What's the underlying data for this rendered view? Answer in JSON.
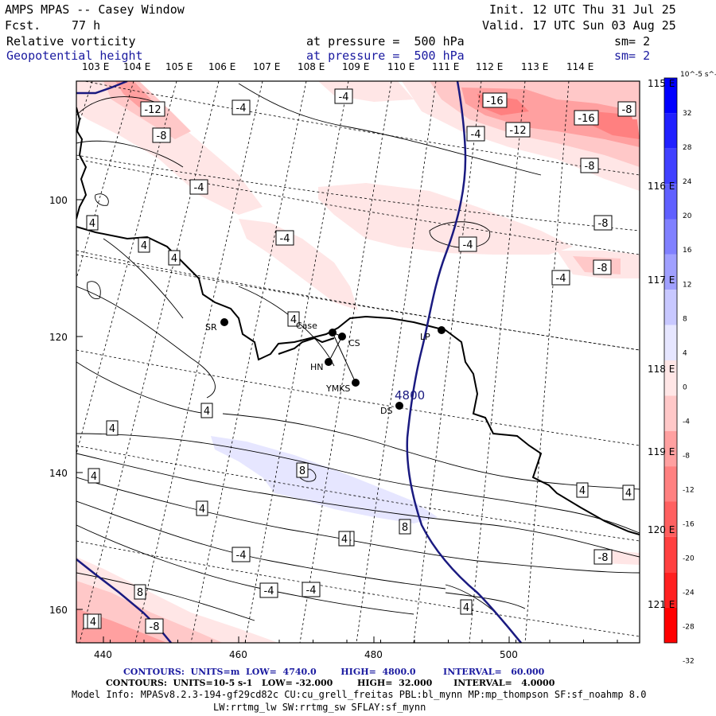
{
  "header": {
    "title": "AMPS MPAS -- Casey Window",
    "forecast_label": "Fcst.",
    "forecast_value": "77 h",
    "init": "Init. 12 UTC Thu 31 Jul 25",
    "valid": "Valid. 17 UTC Sun 03 Aug 25",
    "field1_name": "Relative vorticity",
    "field1_level": "at pressure =  500 hPa",
    "field1_sm": "sm= 2",
    "field2_name": "Geopotential height",
    "field2_level": "at pressure =  500 hPa",
    "field2_sm": "sm= 2"
  },
  "top_lon_labels": [
    "103 E",
    "104 E",
    "105 E",
    "106 E",
    "107 E",
    "108 E",
    "109 E",
    "110 E",
    "111 E",
    "112 E",
    "113 E",
    "114 E"
  ],
  "right_lon_labels": [
    "115 E",
    "116 E",
    "117 E",
    "118 E",
    "119 E",
    "120 E",
    "121 E"
  ],
  "x_ticks": [
    "440",
    "460",
    "480",
    "500"
  ],
  "y_ticks": [
    "100",
    "120",
    "140",
    "160"
  ],
  "colorbar": {
    "unit": "10^-5 s^-1",
    "labels": [
      "32",
      "28",
      "24",
      "20",
      "16",
      "12",
      "8",
      "4",
      "0",
      "-4",
      "-8",
      "-12",
      "-16",
      "-20",
      "-24",
      "-28",
      "-32"
    ],
    "colors": {
      "pos": [
        "#0000ff",
        "#2020ff",
        "#4040ff",
        "#6060ff",
        "#8080ff",
        "#a0a0ff",
        "#c8c8ff",
        "#e6e6ff"
      ],
      "neg": [
        "#ffe6e6",
        "#ffc8c8",
        "#ffa0a0",
        "#ff8080",
        "#ff6060",
        "#ff4040",
        "#ff2020",
        "#ff0000"
      ]
    }
  },
  "stations": [
    "SR",
    "Case",
    "CS",
    "HN",
    "YMKS",
    "DS",
    "LP"
  ],
  "contour_labels": [
    "-12",
    "-4",
    "-4",
    "-16",
    "-8",
    "-8",
    "-4",
    "-12",
    "-16",
    "-8",
    "-4",
    "-4",
    "-4",
    "-8",
    "-4",
    "4",
    "4",
    "4",
    "4",
    "4",
    "4",
    "4",
    "8",
    "8",
    "4",
    "4",
    "4",
    "4",
    "-4",
    "-4",
    "-4",
    "8",
    "-8",
    "-8",
    "-4",
    "4",
    "-8",
    "4",
    "4"
  ],
  "height_label": "4800",
  "footer": {
    "line1": "CONTOURS:  UNITS=m  LOW=  4740.0        HIGH=  4800.0         INTERVAL=   60.000",
    "line2": "CONTOURS:  UNITS=10-5 s-1   LOW= -32.000        HIGH=  32.000       INTERVAL=   4.0000",
    "line3": "Model Info: MPASv8.2.3-194-gf29cd82c CU:cu_grell_freitas PBL:bl_mynn MP:mp_thompson SF:sf_noahmp 8.0",
    "line4": "LW:rrtmg_lw SW:rrtmg_sw SFLAY:sf_mynn"
  }
}
